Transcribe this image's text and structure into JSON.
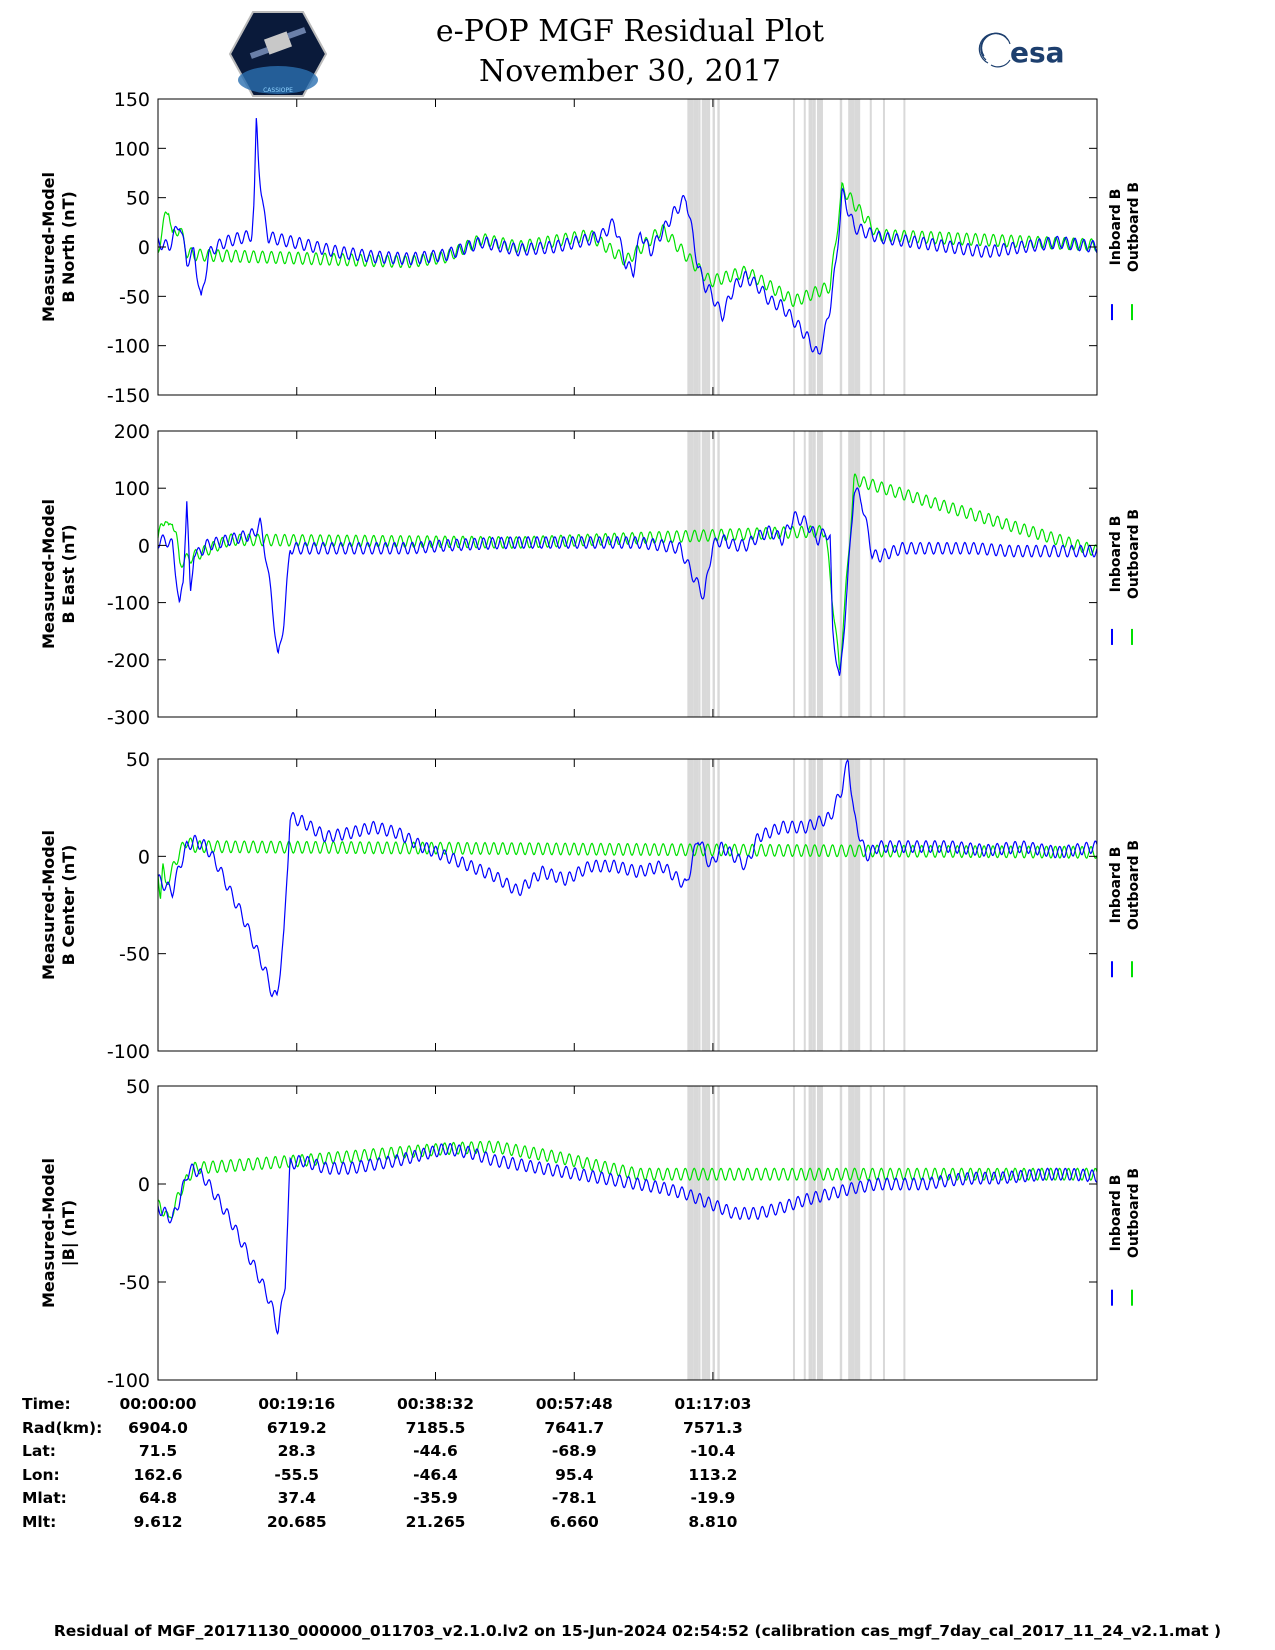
{
  "header": {
    "title": "e-POP MGF Residual Plot",
    "subtitle": "November 30, 2017",
    "logo_left_text": "CASSIOPE",
    "logo_right_text": "esa"
  },
  "chart_data": [
    {
      "type": "line",
      "ylabel_line1": "Measured-Model",
      "ylabel_line2": "B North (nT)",
      "ylim": [
        -150,
        150
      ],
      "yticks": [
        -150,
        -100,
        -50,
        0,
        50,
        100,
        150
      ],
      "legend": [
        "Inboard B",
        "Outboard B"
      ],
      "series": [
        {
          "name": "Inboard B",
          "color": "#0000ff",
          "x": [
            0,
            90,
            180,
            240,
            300,
            360,
            420,
            480,
            560,
            640,
            720,
            780,
            800,
            820,
            840,
            860,
            880,
            920,
            1000,
            1200,
            1500,
            1800,
            2100,
            2400,
            2700,
            3000,
            3300,
            3600,
            3700,
            3800,
            3900,
            3960,
            4020,
            4100,
            4200,
            4300,
            4400,
            4500,
            4560,
            4600,
            4700,
            4800,
            4900,
            5000,
            5100,
            5200,
            5300,
            5400,
            5500,
            5550,
            5600,
            5650,
            5700,
            5800,
            6000,
            6300,
            6600,
            6900,
            7200,
            7500,
            7823
          ],
          "y": [
            5,
            0,
            25,
            -15,
            -5,
            -55,
            -8,
            0,
            5,
            8,
            10,
            12,
            40,
            130,
            85,
            55,
            35,
            10,
            8,
            3,
            -5,
            -10,
            -12,
            -8,
            5,
            -3,
            0,
            8,
            12,
            25,
            -18,
            -25,
            15,
            -5,
            15,
            35,
            50,
            -20,
            -40,
            -45,
            -70,
            -40,
            -30,
            -40,
            -55,
            -60,
            -75,
            -90,
            -110,
            -90,
            -60,
            -15,
            55,
            20,
            10,
            5,
            0,
            -5,
            0,
            5,
            0
          ]
        },
        {
          "name": "Outboard B",
          "color": "#00e000",
          "x": [
            0,
            30,
            60,
            90,
            120,
            180,
            240,
            300,
            2100,
            2400,
            2700,
            3000,
            3600,
            3900,
            4200,
            4600,
            4900,
            5300,
            5600,
            5700,
            6000,
            7823
          ],
          "y": [
            -5,
            15,
            30,
            40,
            10,
            20,
            -5,
            -8,
            -15,
            -10,
            8,
            0,
            12,
            -14,
            18,
            -35,
            -25,
            -55,
            -40,
            60,
            12,
            2
          ]
        }
      ],
      "gray_bands": [
        [
          4410,
          4460
        ],
        [
          4460,
          4500
        ],
        [
          4500,
          4520
        ],
        [
          4530,
          4570
        ],
        [
          4570,
          4600
        ],
        [
          4620,
          4640
        ],
        [
          4660,
          4680
        ],
        [
          5290,
          5300
        ],
        [
          5380,
          5390
        ],
        [
          5420,
          5450
        ],
        [
          5450,
          5480
        ],
        [
          5490,
          5540
        ],
        [
          5680,
          5700
        ],
        [
          5750,
          5760
        ],
        [
          5760,
          5800
        ],
        [
          5800,
          5850
        ],
        [
          5930,
          5940
        ],
        [
          6040,
          6050
        ],
        [
          6210,
          6220
        ]
      ]
    },
    {
      "type": "line",
      "ylabel_line1": "Measured-Model",
      "ylabel_line2": "B East (nT)",
      "ylim": [
        -300,
        200
      ],
      "yticks": [
        -300,
        -200,
        -100,
        0,
        100,
        200
      ],
      "legend": [
        "Inboard B",
        "Outboard B"
      ],
      "series": [
        {
          "name": "Inboard B",
          "color": "#0000ff",
          "x": [
            0,
            60,
            120,
            150,
            180,
            210,
            240,
            270,
            300,
            330,
            360,
            400,
            500,
            600,
            700,
            800,
            850,
            900,
            950,
            1000,
            1050,
            1100,
            1200,
            1500,
            1800,
            2100,
            2400,
            2700,
            3000,
            3300,
            3600,
            3900,
            4000,
            4200,
            4350,
            4450,
            4550,
            4620,
            4700,
            4800,
            4900,
            5000,
            5100,
            5200,
            5300,
            5400,
            5500,
            5560,
            5600,
            5620,
            5680,
            5740,
            5800,
            5860,
            5950,
            6000,
            6200,
            6500,
            6800,
            7100,
            7400,
            7823
          ],
          "y": [
            5,
            10,
            0,
            -50,
            -110,
            -60,
            80,
            -90,
            -10,
            -15,
            -10,
            0,
            5,
            10,
            15,
            20,
            40,
            -20,
            -100,
            -200,
            -130,
            -5,
            -5,
            -5,
            -5,
            -5,
            0,
            3,
            5,
            5,
            5,
            5,
            5,
            0,
            -5,
            -50,
            -90,
            0,
            10,
            0,
            0,
            15,
            25,
            10,
            50,
            40,
            10,
            25,
            10,
            -150,
            -240,
            -80,
            100,
            80,
            -15,
            -20,
            -5,
            -5,
            -5,
            -10,
            -10,
            -10
          ]
        },
        {
          "name": "Outboard B",
          "color": "#00e000",
          "x": [
            0,
            30,
            60,
            90,
            120,
            150,
            180,
            600,
            3000,
            5560,
            5680,
            5800,
            7823
          ],
          "y": [
            10,
            35,
            50,
            25,
            45,
            20,
            -30,
            10,
            5,
            25,
            -220,
            115,
            -10
          ]
        }
      ],
      "gray_bands": [
        [
          4410,
          4460
        ],
        [
          4460,
          4500
        ],
        [
          4500,
          4520
        ],
        [
          4530,
          4570
        ],
        [
          4570,
          4600
        ],
        [
          4620,
          4640
        ],
        [
          4660,
          4680
        ],
        [
          5290,
          5300
        ],
        [
          5380,
          5390
        ],
        [
          5420,
          5450
        ],
        [
          5450,
          5480
        ],
        [
          5490,
          5540
        ],
        [
          5680,
          5700
        ],
        [
          5750,
          5760
        ],
        [
          5760,
          5800
        ],
        [
          5800,
          5850
        ],
        [
          5930,
          5940
        ],
        [
          6040,
          6050
        ],
        [
          6210,
          6220
        ]
      ]
    },
    {
      "type": "line",
      "ylabel_line1": "Measured-Model",
      "ylabel_line2": "B Center (nT)",
      "ylim": [
        -100,
        50
      ],
      "yticks": [
        -100,
        -50,
        0,
        50
      ],
      "legend": [
        "Inboard B",
        "Outboard B"
      ],
      "series": [
        {
          "name": "Inboard B",
          "color": "#0000ff",
          "x": [
            0,
            60,
            120,
            180,
            240,
            300,
            400,
            500,
            600,
            700,
            800,
            900,
            950,
            990,
            1050,
            1100,
            1200,
            1400,
            1600,
            1800,
            2000,
            2200,
            2400,
            2600,
            2800,
            3000,
            3200,
            3400,
            3600,
            3800,
            4000,
            4200,
            4400,
            4500,
            4600,
            4700,
            4800,
            4900,
            5000,
            5200,
            5400,
            5600,
            5700,
            5750,
            5800,
            5900,
            6000,
            6300,
            6600,
            6900,
            7200,
            7500,
            7823
          ],
          "y": [
            -12,
            -15,
            -18,
            -5,
            5,
            8,
            5,
            -5,
            -18,
            -30,
            -45,
            -60,
            -70,
            -73,
            -40,
            20,
            18,
            10,
            12,
            15,
            12,
            5,
            0,
            -5,
            -10,
            -18,
            -8,
            -12,
            -5,
            -5,
            -8,
            -5,
            -15,
            10,
            -5,
            5,
            0,
            -5,
            10,
            15,
            15,
            20,
            35,
            50,
            20,
            0,
            5,
            5,
            5,
            3,
            5,
            2,
            5
          ]
        },
        {
          "name": "Outboard B",
          "color": "#00e000",
          "x": [
            0,
            20,
            40,
            60,
            80,
            100,
            180,
            240,
            300,
            7823
          ],
          "y": [
            -8,
            -20,
            -5,
            -15,
            -12,
            -10,
            2,
            8,
            5,
            2
          ]
        }
      ],
      "gray_bands": [
        [
          4410,
          4460
        ],
        [
          4460,
          4500
        ],
        [
          4500,
          4520
        ],
        [
          4530,
          4570
        ],
        [
          4570,
          4600
        ],
        [
          4620,
          4640
        ],
        [
          4660,
          4680
        ],
        [
          5290,
          5300
        ],
        [
          5380,
          5390
        ],
        [
          5420,
          5450
        ],
        [
          5450,
          5480
        ],
        [
          5490,
          5540
        ],
        [
          5680,
          5700
        ],
        [
          5750,
          5760
        ],
        [
          5760,
          5800
        ],
        [
          5800,
          5850
        ],
        [
          5930,
          5940
        ],
        [
          6040,
          6050
        ],
        [
          6210,
          6220
        ]
      ]
    },
    {
      "type": "line",
      "ylabel_line1": "Measured-Model",
      "ylabel_line2": "|B| (nT)",
      "ylim": [
        -100,
        50
      ],
      "yticks": [
        -100,
        -50,
        0,
        50
      ],
      "legend": [
        "Inboard B",
        "Outboard B"
      ],
      "series": [
        {
          "name": "Inboard B",
          "color": "#0000ff",
          "x": [
            0,
            60,
            120,
            180,
            240,
            300,
            400,
            500,
            600,
            700,
            800,
            900,
            960,
            1000,
            1060,
            1100,
            1200,
            1400,
            1600,
            1800,
            2000,
            2200,
            2400,
            2600,
            2800,
            3000,
            3200,
            3400,
            3600,
            3800,
            4000,
            4200,
            4400,
            4600,
            4800,
            5000,
            5200,
            5400,
            5600,
            5800,
            6000,
            6200,
            6400,
            6600,
            6800,
            7000,
            7200,
            7400,
            7600,
            7823
          ],
          "y": [
            -12,
            -15,
            -18,
            -8,
            5,
            8,
            2,
            -8,
            -18,
            -30,
            -42,
            -55,
            -65,
            -75,
            -50,
            10,
            12,
            8,
            8,
            10,
            12,
            15,
            18,
            16,
            12,
            10,
            8,
            6,
            4,
            2,
            0,
            -2,
            -5,
            -10,
            -15,
            -15,
            -12,
            -8,
            -5,
            -2,
            0,
            0,
            0,
            2,
            3,
            3,
            4,
            5,
            5,
            4
          ]
        },
        {
          "name": "Outboard B",
          "color": "#00e000",
          "x": [
            0,
            30,
            60,
            90,
            120,
            200,
            300,
            1200,
            2400,
            2800,
            3300,
            4000,
            7823
          ],
          "y": [
            -10,
            -15,
            -12,
            -20,
            -14,
            -2,
            8,
            12,
            18,
            19,
            14,
            5,
            5
          ]
        }
      ],
      "gray_bands": [
        [
          4410,
          4460
        ],
        [
          4460,
          4500
        ],
        [
          4500,
          4520
        ],
        [
          4530,
          4570
        ],
        [
          4570,
          4600
        ],
        [
          4620,
          4640
        ],
        [
          4660,
          4680
        ],
        [
          5290,
          5300
        ],
        [
          5380,
          5390
        ],
        [
          5420,
          5450
        ],
        [
          5450,
          5480
        ],
        [
          5490,
          5540
        ],
        [
          5680,
          5700
        ],
        [
          5750,
          5760
        ],
        [
          5760,
          5800
        ],
        [
          5800,
          5850
        ],
        [
          5930,
          5940
        ],
        [
          6040,
          6050
        ],
        [
          6210,
          6220
        ]
      ]
    }
  ],
  "x_axis": {
    "xlim": [
      0,
      7823
    ],
    "tick_seconds": [
      0,
      1156,
      2312,
      3468,
      4623
    ]
  },
  "ephemeris": {
    "rows": [
      {
        "label": "Time:",
        "values": [
          "00:00:00",
          "00:19:16",
          "00:38:32",
          "00:57:48",
          "01:17:03"
        ]
      },
      {
        "label": "Rad(km):",
        "values": [
          "6904.0",
          "6719.2",
          "7185.5",
          "7641.7",
          "7571.3"
        ]
      },
      {
        "label": "Lat:",
        "values": [
          "71.5",
          "28.3",
          "-44.6",
          "-68.9",
          "-10.4"
        ]
      },
      {
        "label": "Lon:",
        "values": [
          "162.6",
          "-55.5",
          "-46.4",
          "95.4",
          "113.2"
        ]
      },
      {
        "label": "Mlat:",
        "values": [
          "64.8",
          "37.4",
          "-35.9",
          "-78.1",
          "-19.9"
        ]
      },
      {
        "label": "Mlt:",
        "values": [
          "9.612",
          "20.685",
          "21.265",
          "6.660",
          "8.810"
        ]
      }
    ]
  },
  "footer": "Residual of MGF_20171130_000000_011703_v2.1.0.lv2 on 15-Jun-2024 02:54:52 (calibration cas_mgf_7day_cal_2017_11_24_v2.1.mat )"
}
